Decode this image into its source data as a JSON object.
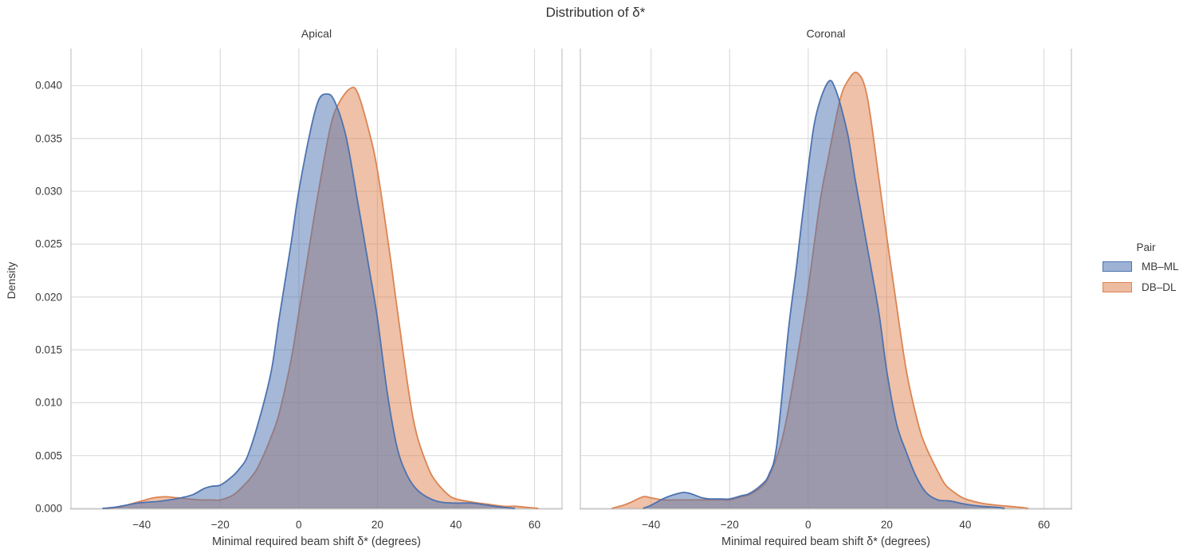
{
  "title": "Distribution of δ*",
  "legend": {
    "title": "Pair",
    "entries": [
      {
        "label": "MB–ML",
        "color": "#4C72B0"
      },
      {
        "label": "DB–DL",
        "color": "#DD8452"
      }
    ]
  },
  "colors": {
    "blue": "#4C72B0",
    "orange": "#DD8452",
    "grid": "#dcdcdc",
    "spine": "#c9c9c9",
    "text": "#3a3a3a",
    "fill_opacity": 0.5
  },
  "chart_data": {
    "type": "area",
    "subtype": "kde-density",
    "title": "Distribution of δ*",
    "xlabel": "Minimal required beam shift δ* (degrees)",
    "ylabel": "Density",
    "xlim": [
      -58,
      67
    ],
    "ylim": [
      0,
      0.0435
    ],
    "grid": true,
    "legend_position": "right",
    "xticks": [
      -40,
      -20,
      0,
      20,
      40,
      60
    ],
    "xtick_labels": [
      "−40",
      "−20",
      "0",
      "20",
      "40",
      "60"
    ],
    "yticks": [
      0.0,
      0.005,
      0.01,
      0.015,
      0.02,
      0.025,
      0.03,
      0.035,
      0.04
    ],
    "ytick_labels": [
      "0.000",
      "0.005",
      "0.010",
      "0.015",
      "0.020",
      "0.025",
      "0.030",
      "0.035",
      "0.040"
    ],
    "facets": [
      {
        "title": "Apical",
        "series": [
          {
            "name": "MB–ML",
            "color": "#4C72B0",
            "points": [
              [
                -50,
                0
              ],
              [
                -47,
                0.0001
              ],
              [
                -44,
                0.0003
              ],
              [
                -41,
                0.0005
              ],
              [
                -38,
                0.0006
              ],
              [
                -36,
                0.00065
              ],
              [
                -33,
                0.0008
              ],
              [
                -30,
                0.001
              ],
              [
                -27,
                0.0013
              ],
              [
                -24,
                0.0019
              ],
              [
                -22,
                0.0021
              ],
              [
                -20,
                0.0022
              ],
              [
                -17,
                0.003
              ],
              [
                -15,
                0.0038
              ],
              [
                -13,
                0.005
              ],
              [
                -10,
                0.0085
              ],
              [
                -7,
                0.013
              ],
              [
                -5,
                0.018
              ],
              [
                -2,
                0.025
              ],
              [
                0,
                0.03
              ],
              [
                3,
                0.0358
              ],
              [
                5,
                0.0386
              ],
              [
                7,
                0.0392
              ],
              [
                9,
                0.0386
              ],
              [
                12,
                0.0352
              ],
              [
                15,
                0.029
              ],
              [
                18,
                0.0225
              ],
              [
                20,
                0.018
              ],
              [
                22.5,
                0.011
              ],
              [
                25,
                0.0058
              ],
              [
                27.5,
                0.0032
              ],
              [
                30,
                0.0018
              ],
              [
                33,
                0.001
              ],
              [
                36,
                0.0006
              ],
              [
                40,
                0.0005
              ],
              [
                44,
                0.0005
              ],
              [
                48,
                0.0003
              ],
              [
                52,
                0.0001
              ],
              [
                55,
                0
              ]
            ]
          },
          {
            "name": "DB–DL",
            "color": "#DD8452",
            "points": [
              [
                -49,
                0
              ],
              [
                -46,
                0.0001
              ],
              [
                -43,
                0.0004
              ],
              [
                -40,
                0.0007
              ],
              [
                -37,
                0.001
              ],
              [
                -34,
                0.0011
              ],
              [
                -31,
                0.001
              ],
              [
                -28,
                0.0009
              ],
              [
                -25,
                0.0008
              ],
              [
                -22,
                0.0008
              ],
              [
                -20,
                0.0008
              ],
              [
                -17,
                0.0012
              ],
              [
                -15,
                0.0018
              ],
              [
                -12,
                0.003
              ],
              [
                -10,
                0.0042
              ],
              [
                -7,
                0.0068
              ],
              [
                -5,
                0.009
              ],
              [
                -2,
                0.014
              ],
              [
                0,
                0.0185
              ],
              [
                3,
                0.0255
              ],
              [
                5,
                0.03
              ],
              [
                8,
                0.036
              ],
              [
                10,
                0.0382
              ],
              [
                13,
                0.0397
              ],
              [
                15,
                0.0393
              ],
              [
                18,
                0.0355
              ],
              [
                20,
                0.032
              ],
              [
                23,
                0.0245
              ],
              [
                25,
                0.019
              ],
              [
                28,
                0.011
              ],
              [
                30,
                0.007
              ],
              [
                33,
                0.0038
              ],
              [
                35,
                0.0025
              ],
              [
                38,
                0.0013
              ],
              [
                40,
                0.0009
              ],
              [
                44,
                0.0006
              ],
              [
                48,
                0.0004
              ],
              [
                52,
                0.0002
              ],
              [
                55,
                0.0002
              ],
              [
                58,
                0.0001
              ],
              [
                61,
                0
              ]
            ]
          }
        ]
      },
      {
        "title": "Coronal",
        "series": [
          {
            "name": "MB–ML",
            "color": "#4C72B0",
            "points": [
              [
                -42,
                0
              ],
              [
                -40,
                0.0003
              ],
              [
                -37,
                0.0009
              ],
              [
                -35,
                0.0012
              ],
              [
                -32,
                0.0015
              ],
              [
                -30,
                0.0014
              ],
              [
                -27,
                0.001
              ],
              [
                -25,
                0.0009
              ],
              [
                -22,
                0.0009
              ],
              [
                -20,
                0.0009
              ],
              [
                -17,
                0.0012
              ],
              [
                -15,
                0.0014
              ],
              [
                -12,
                0.0022
              ],
              [
                -10,
                0.0032
              ],
              [
                -8,
                0.006
              ],
              [
                -5,
                0.017
              ],
              [
                -3,
                0.0228
              ],
              [
                0,
                0.0322
              ],
              [
                2,
                0.0372
              ],
              [
                5,
                0.0403
              ],
              [
                7,
                0.0396
              ],
              [
                10,
                0.0355
              ],
              [
                12,
                0.031
              ],
              [
                15,
                0.0248
              ],
              [
                18,
                0.0185
              ],
              [
                20,
                0.013
              ],
              [
                22.5,
                0.008
              ],
              [
                25,
                0.0053
              ],
              [
                27.5,
                0.003
              ],
              [
                30,
                0.0015
              ],
              [
                33,
                0.0008
              ],
              [
                36,
                0.0007
              ],
              [
                40,
                0.0004
              ],
              [
                44,
                0.0002
              ],
              [
                48,
                0.0001
              ],
              [
                50,
                0
              ]
            ]
          },
          {
            "name": "DB–DL",
            "color": "#DD8452",
            "points": [
              [
                -50,
                0
              ],
              [
                -47,
                0.0003
              ],
              [
                -45,
                0.0006
              ],
              [
                -42,
                0.0011
              ],
              [
                -40,
                0.001
              ],
              [
                -37,
                0.0008
              ],
              [
                -34,
                0.0008
              ],
              [
                -31,
                0.0008
              ],
              [
                -28,
                0.0008
              ],
              [
                -25,
                0.0008
              ],
              [
                -22,
                0.0008
              ],
              [
                -20,
                0.0008
              ],
              [
                -17,
                0.0011
              ],
              [
                -15,
                0.0013
              ],
              [
                -12,
                0.002
              ],
              [
                -10,
                0.003
              ],
              [
                -7,
                0.006
              ],
              [
                -5,
                0.0095
              ],
              [
                -2,
                0.016
              ],
              [
                0,
                0.0208
              ],
              [
                3,
                0.029
              ],
              [
                5,
                0.033
              ],
              [
                8,
                0.0385
              ],
              [
                10,
                0.0404
              ],
              [
                12.5,
                0.0412
              ],
              [
                15,
                0.039
              ],
              [
                18,
                0.0312
              ],
              [
                20,
                0.0257
              ],
              [
                22,
                0.0205
              ],
              [
                25,
                0.013
              ],
              [
                28,
                0.008
              ],
              [
                30,
                0.0058
              ],
              [
                33,
                0.0035
              ],
              [
                35,
                0.0022
              ],
              [
                38,
                0.0013
              ],
              [
                40,
                0.0009
              ],
              [
                44,
                0.0005
              ],
              [
                48,
                0.0003
              ],
              [
                51,
                0.0002
              ],
              [
                54,
                0.0001
              ],
              [
                56,
                0
              ]
            ]
          }
        ]
      }
    ]
  }
}
